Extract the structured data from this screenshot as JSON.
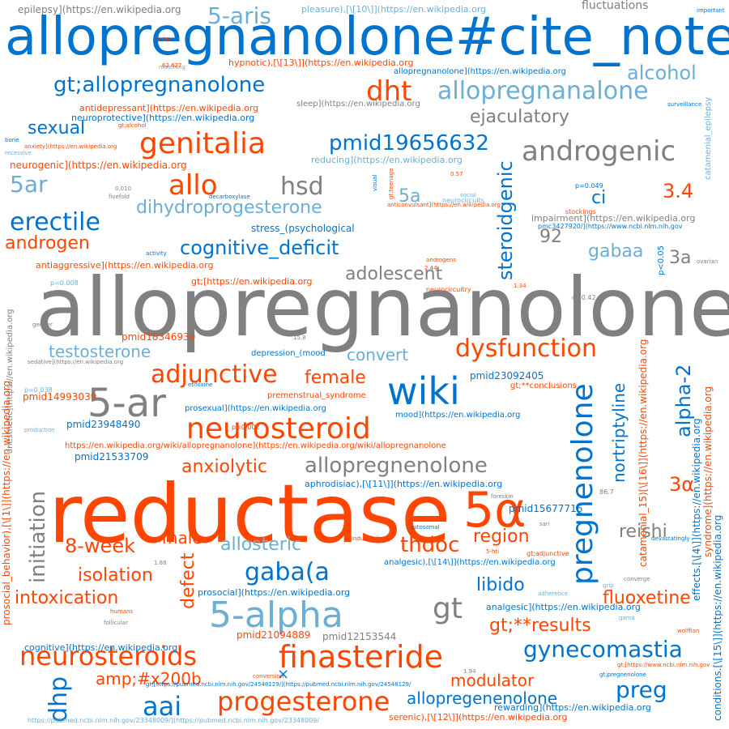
{
  "palette": {
    "gray": "#808080",
    "orange": "#ff4500",
    "blue": "#0073cf",
    "lightblue": "#6baed6"
  },
  "words": [
    {
      "text": "allopregnanolone",
      "color": "gray"
    },
    {
      "text": "reductase",
      "color": "orange"
    },
    {
      "text": "allopregnanolone#cite_note",
      "color": "blue"
    },
    {
      "text": "5α",
      "color": "orange"
    },
    {
      "text": "5-ar",
      "color": "gray"
    },
    {
      "text": "wiki",
      "color": "blue"
    },
    {
      "text": "5-alpha",
      "color": "lightblue"
    },
    {
      "text": "finasteride",
      "color": "orange"
    },
    {
      "text": "neurosteroid",
      "color": "orange"
    },
    {
      "text": "genitalia",
      "color": "orange"
    },
    {
      "text": "androgenic",
      "color": "gray"
    },
    {
      "text": "progesterone",
      "color": "orange"
    },
    {
      "text": "neurosteroids",
      "color": "orange"
    },
    {
      "text": "pregnenolone",
      "color": "blue"
    },
    {
      "text": "allopregnanalone",
      "color": "lightblue"
    },
    {
      "text": "gt;allopregnanolone",
      "color": "blue"
    },
    {
      "text": "dht",
      "color": "orange"
    },
    {
      "text": "pmid19656632",
      "color": "blue"
    },
    {
      "text": "allo",
      "color": "orange"
    },
    {
      "text": "hsd",
      "color": "gray"
    },
    {
      "text": "erectile",
      "color": "blue"
    },
    {
      "text": "dihydroprogesterone",
      "color": "lightblue"
    },
    {
      "text": "cognitive_deficit",
      "color": "blue"
    },
    {
      "text": "dysfunction",
      "color": "orange"
    },
    {
      "text": "adjunctive",
      "color": "orange"
    },
    {
      "text": "allopregnenolone",
      "color": "gray"
    },
    {
      "text": "gaba(a",
      "color": "blue"
    },
    {
      "text": "gynecomastia",
      "color": "blue"
    },
    {
      "text": "aai",
      "color": "blue"
    },
    {
      "text": "gt",
      "color": "gray"
    },
    {
      "text": "dhp",
      "color": "blue"
    },
    {
      "text": "preg",
      "color": "blue"
    },
    {
      "text": "5ar",
      "color": "lightblue"
    },
    {
      "text": "5-aris",
      "color": "lightblue"
    },
    {
      "text": "initiation",
      "color": "gray"
    },
    {
      "text": "steroidgenic",
      "color": "blue"
    },
    {
      "text": "alpha-2",
      "color": "blue"
    },
    {
      "text": "nortriptyline",
      "color": "blue"
    },
    {
      "text": "alcohol",
      "color": "lightblue"
    },
    {
      "text": "ejaculatory",
      "color": "gray"
    },
    {
      "text": "sexual",
      "color": "blue"
    },
    {
      "text": "5a",
      "color": "lightblue"
    },
    {
      "text": "ci",
      "color": "blue"
    },
    {
      "text": "3.4",
      "color": "orange"
    },
    {
      "text": "androgen",
      "color": "orange"
    },
    {
      "text": "92",
      "color": "gray"
    },
    {
      "text": "gabaa",
      "color": "lightblue"
    },
    {
      "text": "3a",
      "color": "gray"
    },
    {
      "text": "3α",
      "color": "orange"
    },
    {
      "text": "adolescent",
      "color": "gray"
    },
    {
      "text": "testosterone",
      "color": "lightblue"
    },
    {
      "text": "convert",
      "color": "lightblue"
    },
    {
      "text": "female",
      "color": "orange"
    },
    {
      "text": "anxiolytic",
      "color": "orange"
    },
    {
      "text": "8-week",
      "color": "orange"
    },
    {
      "text": "isolation",
      "color": "orange"
    },
    {
      "text": "intoxication",
      "color": "orange"
    },
    {
      "text": "male",
      "color": "orange"
    },
    {
      "text": "allosteric",
      "color": "lightblue"
    },
    {
      "text": "thdoc",
      "color": "orange"
    },
    {
      "text": "region",
      "color": "orange"
    },
    {
      "text": "reishi",
      "color": "gray"
    },
    {
      "text": "libido",
      "color": "blue"
    },
    {
      "text": "fluoxetine",
      "color": "orange"
    },
    {
      "text": "defect",
      "color": "orange"
    },
    {
      "text": "gt;**results",
      "color": "orange"
    },
    {
      "text": "modulator",
      "color": "orange"
    },
    {
      "text": "amp;#x200b",
      "color": "orange"
    },
    {
      "text": "allopregenenolone",
      "color": "blue"
    },
    {
      "text": "fluctuations",
      "color": "gray"
    },
    {
      "text": "pmid14993039",
      "color": "orange"
    },
    {
      "text": "pmid23948490",
      "color": "blue"
    },
    {
      "text": "pmid21533709",
      "color": "blue"
    },
    {
      "text": "pmid18346939",
      "color": "orange"
    },
    {
      "text": "pmid23092405",
      "color": "blue"
    },
    {
      "text": "pmid15677716",
      "color": "blue"
    },
    {
      "text": "pmid21094889",
      "color": "orange"
    },
    {
      "text": "pmid12153544",
      "color": "gray"
    },
    {
      "text": "epilepsy](https://en.wikipedia.org",
      "color": "gray"
    },
    {
      "text": "pleasure),[\\[10\\]](https://en.wikipedia.org",
      "color": "lightblue"
    },
    {
      "text": "hypnotic),[\\[13\\]](https://en.wikipedia.org",
      "color": "orange"
    },
    {
      "text": "allopregnanolone](https://en.wikipedia.org",
      "color": "blue"
    },
    {
      "text": "antidepressant](https://en.wikipedia.org",
      "color": "orange"
    },
    {
      "text": "neuroprotective](https://en.wikipedia.org",
      "color": "blue"
    },
    {
      "text": "sleep](https://en.wikipedia.org",
      "color": "gray"
    },
    {
      "text": "neurogenic](https://en.wikipedia.org",
      "color": "orange"
    },
    {
      "text": "reducing](https://en.wikipedia.org",
      "color": "lightblue"
    },
    {
      "text": "antiaggressive](https://en.wikipedia.org",
      "color": "orange"
    },
    {
      "text": "gt;[https://en.wikipedia.org",
      "color": "orange"
    },
    {
      "text": "stress_(psychological",
      "color": "blue"
    },
    {
      "text": "impairment](https://en.wikipedia.org",
      "color": "gray"
    },
    {
      "text": "depression_(mood",
      "color": "blue"
    },
    {
      "text": "premenstrual_syndrome",
      "color": "orange"
    },
    {
      "text": "prosexual](https://en.wikipedia.org",
      "color": "blue"
    },
    {
      "text": "mood](https://en.wikipedia.org",
      "color": "blue"
    },
    {
      "text": "https://en.wikipedia.org/wiki/allopregnanolone](https://en.wikipedia.org/wiki/allopregnanolone",
      "color": "orange"
    },
    {
      "text": "aphrodisiac),[\\[11\\]](https://en.wikipedia.org",
      "color": "blue"
    },
    {
      "text": "analgesic),[\\[14\\]](https://en.wikipedia.org",
      "color": "blue"
    },
    {
      "text": "prosocial](https://en.wikipedia.org",
      "color": "blue"
    },
    {
      "text": "analgesic](https://en.wikipedia.org",
      "color": "blue"
    },
    {
      "text": "cognitive](https://en.wikipedia.org",
      "color": "blue"
    },
    {
      "text": "rewarding](https://en.wikipedia.org",
      "color": "blue"
    },
    {
      "text": "serenic),[\\[12\\]](https://en.wikipedia.org",
      "color": "orange"
    },
    {
      "text": "gt;**conclusions",
      "color": "orange"
    },
    {
      "text": "gt;[https://pubmed.ncbi.nlm.nih.gov/24548129/](https://pubmed.ncbi.nlm.nih.gov/24548129/",
      "color": "blue"
    },
    {
      "text": "https://pubmed.ncbi.nlm.nih.gov/23348009/](https://pubmed.ncbi.nlm.nih.gov/23348009/",
      "color": "lightblue"
    },
    {
      "text": "pmc3427920/](https://www.ncbi.nlm.nih.gov",
      "color": "blue"
    },
    {
      "text": "p=0.049",
      "color": "blue"
    },
    {
      "text": "neurocircuits",
      "color": "lightblue"
    },
    {
      "text": "neurocircuitry",
      "color": "orange"
    },
    {
      "text": "p=0.008",
      "color": "lightblue"
    },
    {
      "text": "p=0.002",
      "color": "orange"
    },
    {
      "text": "p=0.038",
      "color": "lightblue"
    },
    {
      "text": "catamenial_epilepsy",
      "color": "lightblue"
    },
    {
      "text": "anesthetic](https://en.wikipedia.org",
      "color": "gray"
    },
    {
      "text": "prosocial_behavior),[\\[1\\]](https://en.wikipedia.org",
      "color": "orange"
    },
    {
      "text": "catamenial_15)[\\[16\\]](https://en.wikipedia.org",
      "color": "orange"
    },
    {
      "text": "effects.[\\[4\\]](https://en.wikipedia.org",
      "color": "blue"
    },
    {
      "text": "syndrome](https://en.wikipedia.org",
      "color": "orange"
    },
    {
      "text": "conditions.[\\[15\\]](https://en.wikipedia.org",
      "color": "blue"
    },
    {
      "text": "p<0.05",
      "color": "blue"
    },
    {
      "text": "gt;[https://www.ncbi.nlm.nih.gov",
      "color": "orange"
    },
    {
      "text": "gt;pregnenolone",
      "color": "blue"
    },
    {
      "text": "gt;alcohol",
      "color": "orange"
    },
    {
      "text": "gt;adjunctive",
      "color": "orange"
    },
    {
      "text": "stockings",
      "color": "orange"
    },
    {
      "text": "matching",
      "color": "lightblue"
    },
    {
      "text": "0.57",
      "color": "orange"
    },
    {
      "text": "fivefold",
      "color": "gray"
    },
    {
      "text": "0.010",
      "color": "gray"
    },
    {
      "text": "decarboxylase",
      "color": "blue"
    },
    {
      "text": "activity",
      "color": "blue"
    },
    {
      "text": "androgens",
      "color": "orange"
    },
    {
      "text": "ovarian",
      "color": "gray"
    },
    {
      "text": "surveillance",
      "color": "blue"
    },
    {
      "text": "important",
      "color": "blue"
    },
    {
      "text": "devastatingly",
      "color": "blue"
    },
    {
      "text": "etifoxine",
      "color": "blue"
    },
    {
      "text": "social",
      "color": "lightblue"
    },
    {
      "text": "visual",
      "color": "blue"
    },
    {
      "text": "gt;teenage",
      "color": "orange"
    },
    {
      "text": "bone",
      "color": "blue"
    },
    {
      "text": "recessive",
      "color": "lightblue"
    },
    {
      "text": "d=0.42",
      "color": "gray"
    },
    {
      "text": "86.7",
      "color": "gray"
    },
    {
      "text": "autosomal",
      "color": "blue"
    },
    {
      "text": "industrialize",
      "color": "orange"
    },
    {
      "text": "foreskin",
      "color": "gray"
    },
    {
      "text": "5-hti",
      "color": "orange"
    },
    {
      "text": "sari",
      "color": "gray"
    },
    {
      "text": "follicular",
      "color": "gray"
    },
    {
      "text": "humans",
      "color": "orange"
    },
    {
      "text": "production",
      "color": "lightblue"
    },
    {
      "text": "wolffian",
      "color": "orange"
    },
    {
      "text": "converge",
      "color": "gray"
    },
    {
      "text": "grip",
      "color": "lightblue"
    },
    {
      "text": "adherence",
      "color": "lightblue"
    },
    {
      "text": "conversion",
      "color": "orange"
    },
    {
      "text": "1.94",
      "color": "gray"
    },
    {
      "text": "1.34",
      "color": "orange"
    },
    {
      "text": "1.88",
      "color": "gray"
    },
    {
      "text": "2.16",
      "color": "orange"
    },
    {
      "text": "15.8",
      "color": "gray"
    },
    {
      "text": "2.44",
      "color": "orange"
    },
    {
      "text": "62.627",
      "color": "orange"
    },
    {
      "text": "anxiety](https://en.wikipedia.org",
      "color": "orange"
    },
    {
      "text": "sedative](https://en.wikipedia.org",
      "color": "gray"
    },
    {
      "text": "anticonvulsant](https://en.wikipedia.org",
      "color": "orange"
    },
    {
      "text": "gender",
      "color": "gray"
    },
    {
      "text": "gama",
      "color": "lightblue"
    },
    {
      "text": "×",
      "color": "blue"
    }
  ]
}
